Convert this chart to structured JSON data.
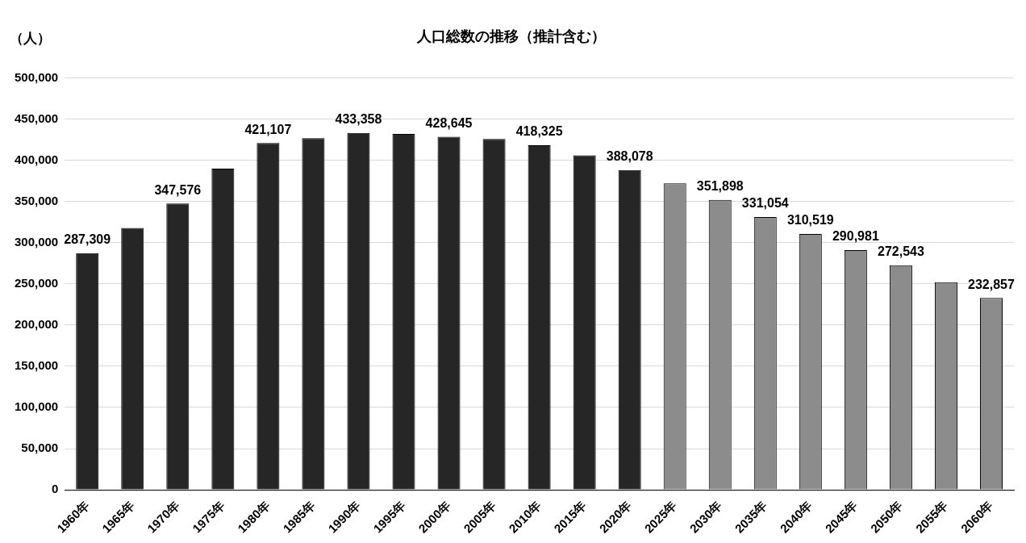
{
  "chart_data": {
    "type": "bar",
    "title": "人口総数の推移（推計含む）",
    "ylabel": "（人）",
    "categories": [
      "1960年",
      "1965年",
      "1970年",
      "1975年",
      "1980年",
      "1985年",
      "1990年",
      "1995年",
      "2000年",
      "2005年",
      "2010年",
      "2015年",
      "2020年",
      "2025年",
      "2030年",
      "2035年",
      "2040年",
      "2045年",
      "2050年",
      "2055年",
      "2060年"
    ],
    "values": [
      287309,
      318000,
      347576,
      390000,
      421107,
      427000,
      433358,
      432000,
      428645,
      426000,
      418325,
      406000,
      388078,
      372000,
      351898,
      331054,
      310519,
      290981,
      272543,
      252000,
      232857
    ],
    "value_labels": [
      "287,309",
      null,
      "347,576",
      null,
      "421,107",
      null,
      "433,358",
      null,
      "428,645",
      null,
      "418,325",
      null,
      "388,078",
      null,
      "351,898",
      "331,054",
      "310,519",
      "290,981",
      "272,543",
      null,
      "232,857"
    ],
    "colors": [
      "#262626",
      "#262626",
      "#262626",
      "#262626",
      "#262626",
      "#262626",
      "#262626",
      "#262626",
      "#262626",
      "#262626",
      "#262626",
      "#262626",
      "#262626",
      "#8c8c8c",
      "#8c8c8c",
      "#8c8c8c",
      "#8c8c8c",
      "#8c8c8c",
      "#8c8c8c",
      "#8c8c8c",
      "#8c8c8c"
    ],
    "ylim": [
      0,
      500000
    ],
    "yticks": [
      0,
      {
        "value": 50000,
        "label": "50,000"
      },
      {
        "value": 100000,
        "label": "100,000"
      },
      {
        "value": 150000,
        "label": "150,000"
      },
      {
        "value": 200000,
        "label": "200,000"
      },
      {
        "value": 250000,
        "label": "250,000"
      },
      {
        "value": 300000,
        "label": "300,000"
      },
      {
        "value": 350000,
        "label": "350,000"
      },
      {
        "value": 400000,
        "label": "400,000"
      },
      {
        "value": 450000,
        "label": "450,000"
      },
      {
        "value": 500000,
        "label": "500,000"
      }
    ],
    "grid": "y",
    "legend": false
  }
}
